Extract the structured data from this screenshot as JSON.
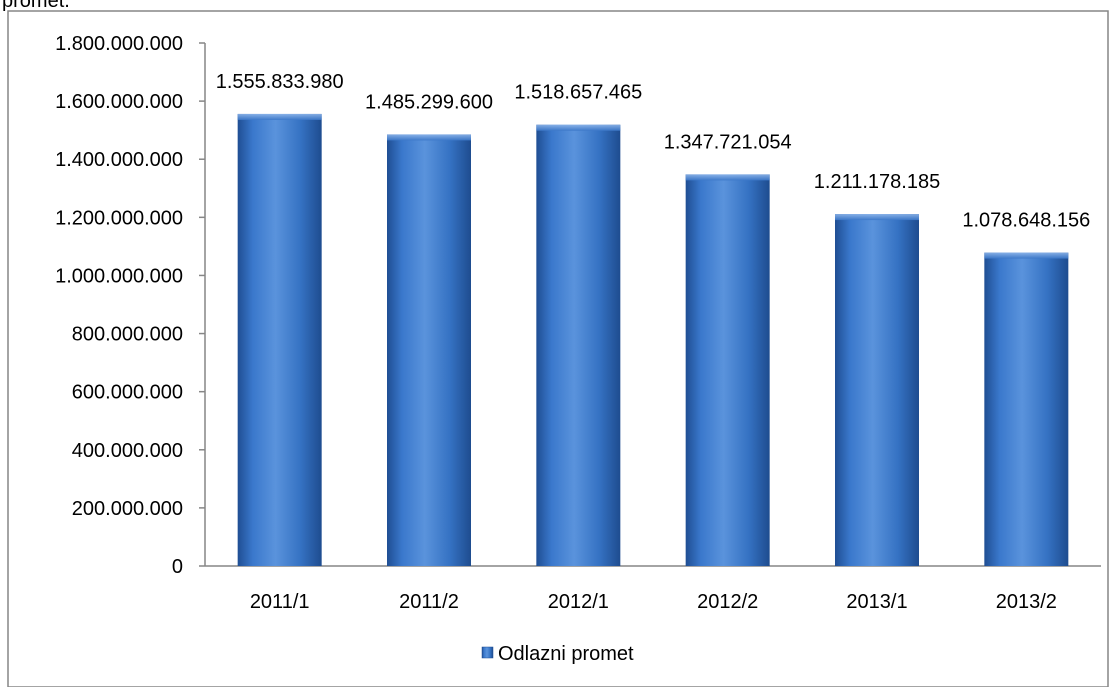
{
  "chart_data": {
    "type": "bar",
    "title": "",
    "xlabel": "",
    "ylabel": "",
    "categories": [
      "2011/1",
      "2011/2",
      "2012/1",
      "2012/2",
      "2013/1",
      "2013/2"
    ],
    "series": [
      {
        "name": "Odlazni promet",
        "color": "#2F6DC0",
        "values": [
          1555833980,
          1485299600,
          1518657465,
          1347721054,
          1211178185,
          1078648156
        ],
        "value_labels": [
          "1.555.833.980",
          "1.485.299.600",
          "1.518.657.465",
          "1.347.721.054",
          "1.211.178.185",
          "1.078.648.156"
        ]
      }
    ],
    "ylim": [
      0,
      1800000000
    ],
    "yticks": [
      0,
      200000000,
      400000000,
      600000000,
      800000000,
      1000000000,
      1200000000,
      1400000000,
      1600000000,
      1800000000
    ],
    "ytick_labels": [
      "0",
      "200.000.000",
      "400.000.000",
      "600.000.000",
      "800.000.000",
      "1.000.000.000",
      "1.200.000.000",
      "1.400.000.000",
      "1.600.000.000",
      "1.800.000.000"
    ],
    "grid": false,
    "legend_position": "bottom",
    "top_text_fragment": "promet."
  }
}
